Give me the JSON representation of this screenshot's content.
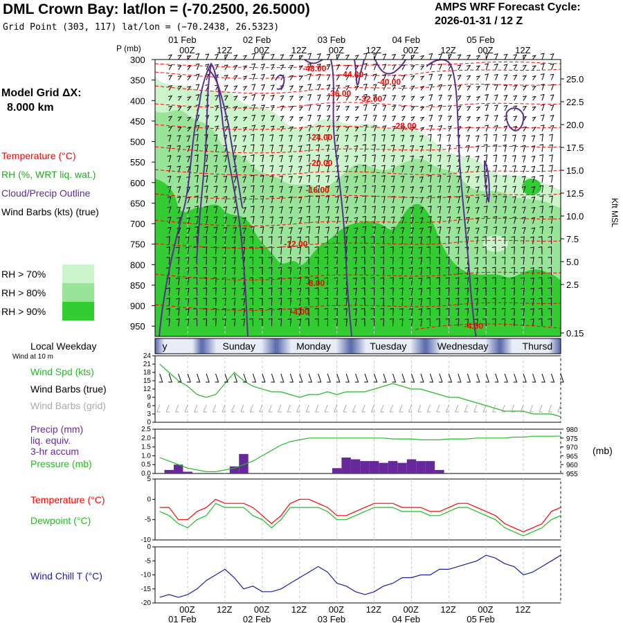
{
  "header": {
    "title": "DML Crown Bay:  lat/lon = (-70.2500, 26.5000)",
    "subtitle": "Grid Point (303, 117) lat/lon = (−70.2438, 26.5323)",
    "cycle_line1": "AMPS WRF Forecast Cycle:",
    "cycle_line2": "2026-01-31 / 12  Z"
  },
  "left_panel": {
    "model_grid_label": "Model Grid ΔX:",
    "model_grid_value": "8.000 km",
    "legend_temperature": "Temperature (°C)",
    "legend_rh": "RH (%, WRT liq. wat.)",
    "legend_cloud": "Cloud/Precip Outline",
    "legend_wind": "Wind Barbs (kts) (true)",
    "rh70": "RH > 70%",
    "rh80": "RH > 80%",
    "rh90": "RH > 90%",
    "local_weekday": "Local Weekday",
    "wind_at": "Wind at 10 m",
    "wind_spd": "Wind Spd (kts)",
    "wind_barbs_true": "Wind Barbs (true)",
    "wind_barbs_grid": "Wind Barbs (grid)",
    "precip_l1": "Precip (mm)",
    "precip_l2": "liq. equiv.",
    "precip_l3": "3-hr accum",
    "pressure": "Pressure (mb)",
    "temperature": "Temperature (°C)",
    "dewpoint": "Dewpoint (°C)",
    "wind_chill": "Wind Chill T (°C)"
  },
  "colors": {
    "rh70": "#ccf5cc",
    "rh80": "#98e498",
    "rh90": "#33cc33",
    "temperature": "#ff0000",
    "cloud": "#5a2d91",
    "green": "#22bb22",
    "grey_barb": "#aaaaaa",
    "windchill": "#1a1aa6",
    "precip": "#66289a"
  },
  "chart_data": [
    {
      "type": "heatmap",
      "title": "Time-height cross section",
      "p_label": "P (mb)",
      "kft_label": "Kft MSL",
      "p_ticks": [
        "300",
        "350",
        "400",
        "450",
        "500",
        "550",
        "600",
        "650",
        "700",
        "750",
        "800",
        "850",
        "900",
        "950"
      ],
      "p_range": [
        300,
        975
      ],
      "kft_ticks": [
        "25.0",
        "22.5",
        "20.0",
        "17.5",
        "15.0",
        "12.5",
        "10.0",
        "7.5",
        "5.0",
        "2.5",
        "0.15"
      ],
      "date_labels": [
        "01 Feb",
        "02 Feb",
        "03 Feb",
        "04 Feb",
        "05 Feb"
      ],
      "time_ticks": [
        "00Z",
        "12Z",
        "00Z",
        "12Z",
        "00Z",
        "12Z",
        "00Z",
        "12Z",
        "00Z",
        "12Z"
      ],
      "forecast_hours": 120,
      "temperature_labels": [
        {
          "label": "-48.00",
          "hour": 37,
          "p": 322
        },
        {
          "label": "-44.00",
          "hour": 49,
          "p": 336
        },
        {
          "label": "-40.00",
          "hour": 61,
          "p": 355
        },
        {
          "label": "-36.00",
          "hour": 45,
          "p": 383
        },
        {
          "label": "-32.00",
          "hour": 55,
          "p": 396
        },
        {
          "label": "-28.00",
          "hour": 66,
          "p": 462
        },
        {
          "label": "-24.00",
          "hour": 39,
          "p": 490
        },
        {
          "label": "-20.00",
          "hour": 39,
          "p": 552
        },
        {
          "label": "-16.00",
          "hour": 38,
          "p": 618
        },
        {
          "label": "-12.00",
          "hour": 31,
          "p": 750
        },
        {
          "label": "-8.00",
          "hour": 38,
          "p": 845
        },
        {
          "label": "-4.00",
          "hour": 33,
          "p": 915
        },
        {
          "label": "-4.00",
          "hour": 89,
          "p": 950
        }
      ]
    },
    {
      "type": "line",
      "title": "Wind speed",
      "y_ticks": [
        "24",
        "21",
        "18",
        "15",
        "12",
        "9",
        "6",
        "3",
        "0"
      ],
      "ylim": [
        0,
        24
      ],
      "hours": [
        -9,
        -6,
        -3,
        0,
        3,
        6,
        9,
        12,
        15,
        18,
        21,
        24,
        27,
        30,
        33,
        36,
        39,
        42,
        45,
        48,
        51,
        54,
        57,
        60,
        63,
        66,
        69,
        72,
        75,
        78,
        81,
        84,
        87,
        90,
        93,
        96,
        99,
        102,
        105,
        108,
        111,
        114,
        117,
        120
      ],
      "values": [
        21,
        18,
        15,
        13,
        10,
        9,
        10,
        14,
        18,
        15,
        13,
        12,
        11,
        11,
        10,
        9,
        10,
        10,
        11,
        10,
        11,
        11,
        11,
        12,
        13,
        14,
        13,
        12,
        12,
        11,
        10,
        9,
        9,
        8,
        7,
        6,
        5,
        4,
        4,
        4,
        3,
        3,
        3,
        2
      ],
      "days": [
        "y",
        "Sunday",
        "Monday",
        "Tuesday",
        "Wednesday",
        "Thursd"
      ]
    },
    {
      "type": "bar",
      "title": "Precip and pressure",
      "y_ticks": [
        "2.5",
        "2.0",
        "1.5",
        "1.0",
        "0.5",
        "0.0"
      ],
      "ylim": [
        0,
        2.5
      ],
      "y2_ticks": [
        "980",
        "975",
        "970",
        "965",
        "960",
        "955"
      ],
      "y2lim": [
        955,
        980
      ],
      "y2_label": "(mb)",
      "precip_hours": [
        -6,
        -3,
        0,
        15,
        18,
        48,
        51,
        54,
        57,
        60,
        63,
        66,
        69,
        72,
        75,
        78,
        81
      ],
      "precip_values": [
        0.2,
        0.5,
        0.1,
        0.4,
        1.1,
        0.3,
        0.9,
        0.8,
        0.7,
        0.7,
        0.6,
        0.7,
        0.6,
        0.8,
        0.7,
        0.7,
        0.2
      ],
      "pressure_hours": [
        -9,
        -6,
        -3,
        0,
        3,
        6,
        9,
        12,
        15,
        18,
        21,
        24,
        27,
        30,
        33,
        36,
        39,
        42,
        45,
        48,
        51,
        54,
        57,
        60,
        63,
        66,
        69,
        72,
        75,
        78,
        81,
        84,
        87,
        90,
        93,
        96,
        99,
        102,
        105,
        108,
        111,
        114,
        117,
        120
      ],
      "pressure_values": [
        964,
        962,
        960,
        958,
        957,
        956,
        956,
        957,
        958,
        960,
        962,
        965,
        968,
        971,
        973,
        974,
        975,
        975,
        975,
        975,
        975,
        975,
        975,
        975,
        975,
        974.5,
        974.5,
        974.5,
        974,
        974,
        974,
        974.5,
        974.5,
        974.5,
        975,
        975,
        975,
        975,
        975.5,
        975.5,
        976,
        976,
        976,
        976
      ]
    },
    {
      "type": "line",
      "title": "Temperature and dewpoint",
      "y_ticks": [
        "5",
        "0",
        "-5",
        "-10"
      ],
      "ylim": [
        -10,
        5
      ],
      "hours": [
        -9,
        -6,
        -3,
        0,
        3,
        6,
        9,
        12,
        15,
        18,
        21,
        24,
        27,
        30,
        33,
        36,
        39,
        42,
        45,
        48,
        51,
        54,
        57,
        60,
        63,
        66,
        69,
        72,
        75,
        78,
        81,
        84,
        87,
        90,
        93,
        96,
        99,
        102,
        105,
        108,
        111,
        114,
        117,
        120
      ],
      "series": [
        {
          "name": "Temperature",
          "values": [
            -2,
            -2,
            -5,
            -5,
            -3,
            -2,
            0,
            -1,
            -1,
            -1,
            -2,
            -4,
            -6,
            -4,
            -1,
            0,
            0,
            -1,
            -2,
            -4,
            -4,
            -3,
            -2,
            -1,
            -1,
            -1,
            -2,
            -2,
            -2,
            -3,
            -3,
            -2,
            -1,
            -1,
            -2,
            -3,
            -4,
            -6,
            -7,
            -8,
            -7,
            -6,
            -3,
            -2
          ]
        },
        {
          "name": "Dewpoint",
          "values": [
            -3,
            -4,
            -6,
            -7,
            -5,
            -4,
            -1,
            -2,
            -2,
            -2,
            -4,
            -5,
            -7,
            -5,
            -2,
            -2,
            -2,
            -2,
            -3,
            -5,
            -5,
            -4,
            -3,
            -2,
            -2,
            -2,
            -3,
            -3,
            -3,
            -4,
            -4,
            -3,
            -2,
            -2,
            -3,
            -4,
            -5,
            -7,
            -8,
            -9,
            -8,
            -7,
            -5,
            -4
          ]
        }
      ]
    },
    {
      "type": "line",
      "title": "Wind chill",
      "y_ticks": [
        "0",
        "-5",
        "-10",
        "-15",
        "-20"
      ],
      "ylim": [
        -20,
        0
      ],
      "x_ticks": [
        "00Z",
        "12Z",
        "00Z",
        "12Z",
        "00Z",
        "12Z",
        "00Z",
        "12Z",
        "00Z",
        "12Z"
      ],
      "date_labels": [
        "01 Feb",
        "02 Feb",
        "03 Feb",
        "04 Feb",
        "05 Feb"
      ],
      "hours": [
        -9,
        -6,
        -3,
        0,
        3,
        6,
        9,
        12,
        15,
        18,
        21,
        24,
        27,
        30,
        33,
        36,
        39,
        42,
        45,
        48,
        51,
        54,
        57,
        60,
        63,
        66,
        69,
        72,
        75,
        78,
        81,
        84,
        87,
        90,
        93,
        96,
        99,
        102,
        105,
        108,
        111,
        114,
        117,
        120
      ],
      "values": [
        -18,
        -17,
        -18,
        -17,
        -15,
        -12,
        -10,
        -8,
        -11,
        -15,
        -14,
        -16,
        -16,
        -15,
        -13,
        -11,
        -9,
        -7,
        -9,
        -13,
        -14,
        -16,
        -17,
        -16,
        -14,
        -13,
        -11,
        -11,
        -10,
        -10,
        -8,
        -8,
        -7,
        -6,
        -5,
        -3,
        -4,
        -6,
        -7,
        -10,
        -9,
        -7,
        -5,
        -3
      ]
    }
  ]
}
